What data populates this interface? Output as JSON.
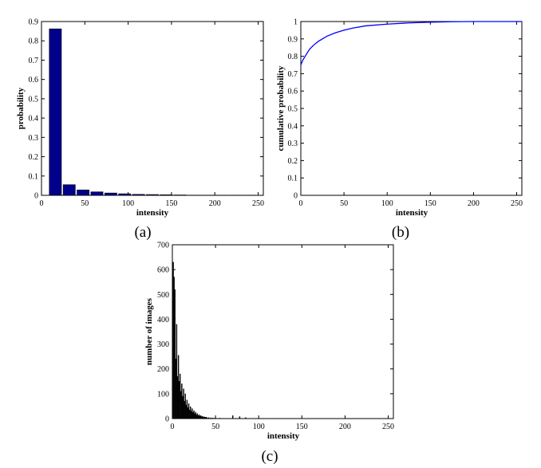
{
  "chart_data": [
    {
      "id": "a",
      "type": "bar",
      "panel_label": "(a)",
      "xlabel": "intensity",
      "ylabel": "probability",
      "xlim": [
        0,
        256
      ],
      "ylim": [
        0,
        0.9
      ],
      "xticks": [
        0,
        50,
        100,
        150,
        200,
        250
      ],
      "yticks": [
        0,
        0.1,
        0.2,
        0.3,
        0.4,
        0.5,
        0.6,
        0.7,
        0.8,
        0.9
      ],
      "bar_width": 14,
      "x": [
        16,
        32,
        48,
        64,
        80,
        96,
        112,
        128,
        144,
        160,
        176,
        192,
        208,
        224,
        240
      ],
      "values": [
        0.862,
        0.055,
        0.028,
        0.018,
        0.012,
        0.008,
        0.005,
        0.004,
        0.003,
        0.002,
        0.001,
        0.001,
        0.001,
        0.001,
        0.001
      ],
      "color": "#00008b"
    },
    {
      "id": "b",
      "type": "line",
      "panel_label": "(b)",
      "xlabel": "intensity",
      "ylabel": "cumulative probability",
      "xlim": [
        0,
        256
      ],
      "ylim": [
        0,
        1
      ],
      "xticks": [
        0,
        50,
        100,
        150,
        200,
        250
      ],
      "yticks": [
        0,
        0.1,
        0.2,
        0.3,
        0.4,
        0.5,
        0.6,
        0.7,
        0.8,
        0.9,
        1
      ],
      "x": [
        0,
        2,
        5,
        10,
        15,
        20,
        30,
        40,
        50,
        60,
        75,
        100,
        125,
        150,
        175,
        200,
        225,
        256
      ],
      "y": [
        0.75,
        0.775,
        0.8,
        0.84,
        0.865,
        0.885,
        0.915,
        0.935,
        0.95,
        0.962,
        0.975,
        0.985,
        0.992,
        0.996,
        0.999,
        1.0,
        1.0,
        1.0
      ],
      "color": "#0000ff"
    },
    {
      "id": "c",
      "type": "bar",
      "panel_label": "(c)",
      "xlabel": "intensity",
      "ylabel": "number of images",
      "xlim": [
        0,
        256
      ],
      "ylim": [
        0,
        700
      ],
      "xticks": [
        0,
        50,
        100,
        150,
        200,
        250
      ],
      "yticks": [
        0,
        100,
        200,
        300,
        400,
        500,
        600,
        700
      ],
      "bar_width": 1,
      "x": [
        1,
        2,
        3,
        4,
        5,
        6,
        7,
        8,
        9,
        10,
        11,
        12,
        13,
        14,
        15,
        16,
        17,
        18,
        19,
        20,
        21,
        22,
        23,
        24,
        25,
        26,
        27,
        28,
        29,
        30,
        31,
        32,
        33,
        34,
        35,
        36,
        37,
        38,
        39,
        40,
        42,
        44,
        46,
        48,
        50,
        55,
        60,
        70,
        78,
        85
      ],
      "values": [
        630,
        570,
        520,
        240,
        380,
        170,
        255,
        150,
        180,
        110,
        140,
        90,
        120,
        70,
        100,
        55,
        75,
        45,
        60,
        35,
        48,
        30,
        40,
        25,
        32,
        20,
        26,
        15,
        20,
        12,
        16,
        10,
        12,
        8,
        9,
        6,
        7,
        5,
        6,
        4,
        4,
        3,
        3,
        2,
        2,
        2,
        1,
        12,
        8,
        4
      ],
      "color": "#000000"
    }
  ]
}
